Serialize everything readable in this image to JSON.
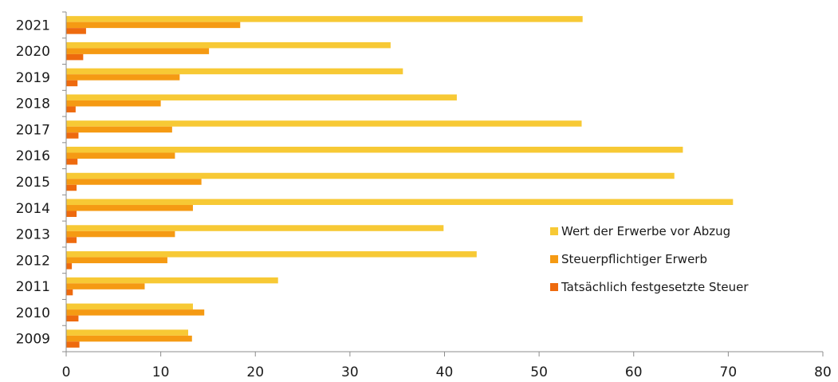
{
  "chart_data": {
    "type": "bar",
    "orientation": "horizontal",
    "title": "",
    "xlabel": "",
    "ylabel": "",
    "categories": [
      "2021",
      "2020",
      "2019",
      "2018",
      "2017",
      "2016",
      "2015",
      "2014",
      "2013",
      "2012",
      "2011",
      "2010",
      "2009"
    ],
    "series": [
      {
        "name": "Wert der Erwerbe vor Abzug",
        "color": "#F7C935",
        "values": [
          54.6,
          34.3,
          35.6,
          41.3,
          54.5,
          65.2,
          64.3,
          70.5,
          39.9,
          43.4,
          22.4,
          13.4,
          12.9
        ]
      },
      {
        "name": "Steuerpflichtiger Erwerb",
        "color": "#F59A13",
        "values": [
          18.4,
          15.1,
          12.0,
          10.0,
          11.2,
          11.5,
          14.3,
          13.4,
          11.5,
          10.7,
          8.3,
          14.6,
          13.3
        ]
      },
      {
        "name": "Tatsächlich festgesetzte Steuer",
        "color": "#EE6A0E",
        "values": [
          2.1,
          1.8,
          1.2,
          1.0,
          1.3,
          1.2,
          1.1,
          1.1,
          1.1,
          0.6,
          0.7,
          1.3,
          1.4
        ]
      }
    ],
    "xlim": [
      0,
      80
    ],
    "xticks": [
      "0",
      "10",
      "20",
      "30",
      "40",
      "50",
      "60",
      "70",
      "80"
    ],
    "grid": false,
    "legend_position": "right"
  }
}
